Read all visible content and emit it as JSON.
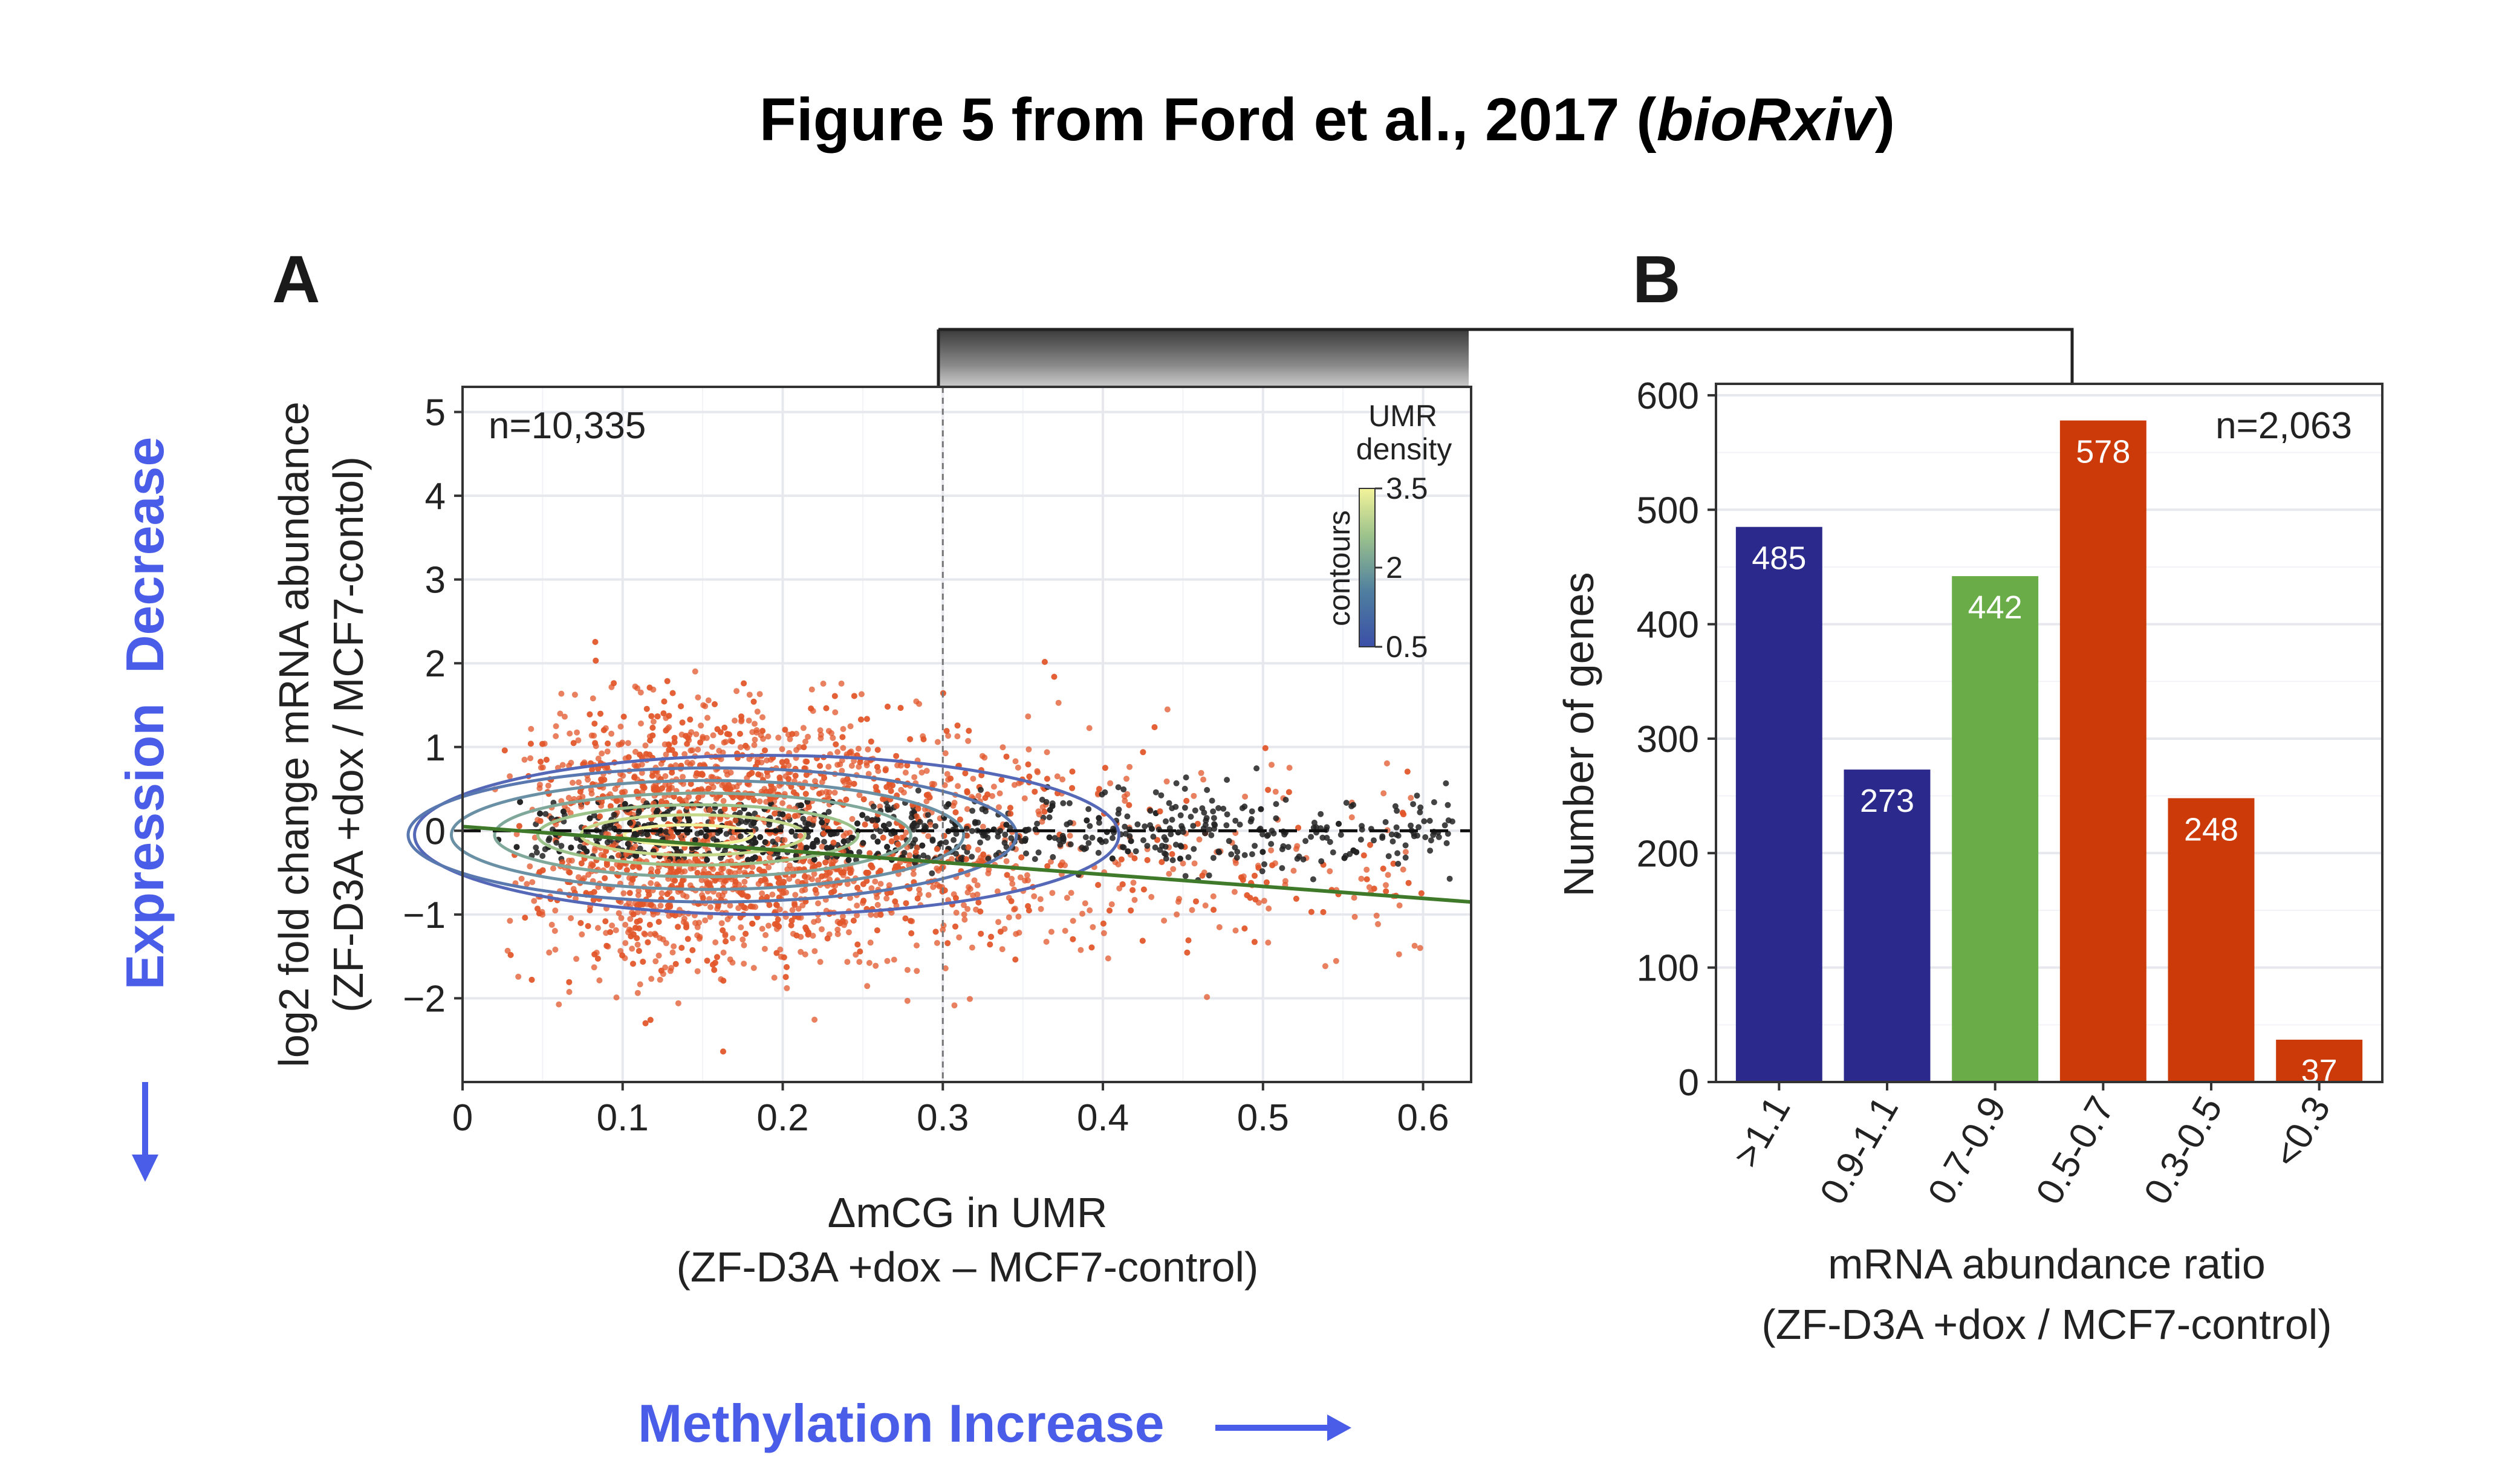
{
  "figure": {
    "title_main": "Figure 5 from Ford et al., 2017 (",
    "title_italic": "bioRxiv",
    "title_end": ")",
    "bottom_arrow_label": "Methylation Increase",
    "left_arrow_label": "Expression  Decrease",
    "accent_blue": "#4a5de8"
  },
  "chart_data": [
    {
      "panel": "A",
      "type": "scatter",
      "annotation": "n=10,335",
      "xlabel": "ΔmCG in UMR",
      "xlabel2": "(ZF-D3A +dox – MCF7-control)",
      "ylabel": "log2 fold change mRNA abundance",
      "ylabel2": "(ZF-D3A +dox / MCF7-contol)",
      "xlim": [
        0,
        0.63
      ],
      "ylim": [
        -3,
        5.3
      ],
      "xticks": [
        0,
        0.1,
        0.2,
        0.3,
        0.4,
        0.5,
        0.6
      ],
      "xtick_labels": [
        "0",
        "0.1",
        "0.2",
        "0.3",
        "0.4",
        "0.5",
        "0.6"
      ],
      "yticks": [
        -2,
        -1,
        0,
        1,
        2,
        3,
        4,
        5
      ],
      "ytick_labels": [
        "−2",
        "−1",
        "0",
        "1",
        "2",
        "3",
        "4",
        "5"
      ],
      "threshold_x": 0.3,
      "zero_line_y": 0,
      "trend_line": {
        "x": [
          0,
          0.63
        ],
        "y": [
          0.05,
          -0.85
        ],
        "color": "#3f7a2a"
      },
      "point_colors": {
        "selected": "#e2562a",
        "other": "#222222"
      },
      "legend": {
        "title": "UMR",
        "title2": "density",
        "side_label": "contours",
        "tick_labels": [
          "3.5",
          "2",
          "0.5"
        ],
        "tick_values": [
          3.5,
          2,
          0.5
        ],
        "range": [
          0.5,
          3.5
        ]
      },
      "grid": true
    },
    {
      "panel": "B",
      "type": "bar",
      "annotation": "n=2,063",
      "categories": [
        ">1.1",
        "0.9-1.1",
        "0.7-0.9",
        "0.5-0.7",
        "0.3-0.5",
        "<0.3"
      ],
      "values": [
        485,
        273,
        442,
        578,
        248,
        37
      ],
      "value_labels": [
        "485",
        "273",
        "442",
        "578",
        "248",
        "37"
      ],
      "colors": [
        "#2b2a8c",
        "#2b2a8c",
        "#6aac48",
        "#cc3a0a",
        "#cc3a0a",
        "#cc3a0a"
      ],
      "ylabel": "Number of genes",
      "xlabel": "mRNA abundance ratio",
      "xlabel2": "(ZF-D3A +dox / MCF7-control)",
      "ylim": [
        0,
        610
      ],
      "yticks": [
        0,
        100,
        200,
        300,
        400,
        500,
        600
      ],
      "ytick_labels": [
        "0",
        "100",
        "200",
        "300",
        "400",
        "500",
        "600"
      ],
      "grid": true
    }
  ]
}
